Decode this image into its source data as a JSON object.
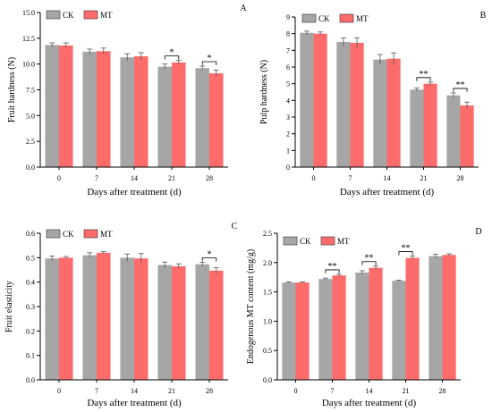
{
  "colors": {
    "CK": "#a6a6a6",
    "MT": "#fe6b6b",
    "axis": "#000000"
  },
  "chart_data": [
    {
      "panel": "A",
      "type": "bar",
      "xlabel": "Days after treatment (d)",
      "ylabel": "Fruit hardness (N)",
      "categories": [
        "0",
        "7",
        "14",
        "21",
        "28"
      ],
      "ylim": [
        0,
        15
      ],
      "yticks": [
        0.0,
        2.5,
        5.0,
        7.5,
        10.0,
        12.5,
        15.0
      ],
      "ytick_labels": [
        "0.0",
        "2.5",
        "5.0",
        "7.5",
        "10.0",
        "12.5",
        "15.0"
      ],
      "series": [
        {
          "name": "CK",
          "values": [
            11.85,
            11.2,
            10.65,
            9.75,
            9.6
          ],
          "errors": [
            0.2,
            0.25,
            0.35,
            0.25,
            0.2
          ]
        },
        {
          "name": "MT",
          "values": [
            11.8,
            11.25,
            10.75,
            10.15,
            9.1
          ],
          "errors": [
            0.25,
            0.3,
            0.35,
            0.2,
            0.3
          ]
        }
      ],
      "significance": [
        {
          "category": "21",
          "label": "*"
        },
        {
          "category": "28",
          "label": "*"
        }
      ]
    },
    {
      "panel": "B",
      "type": "bar",
      "xlabel": "Days after treatment (d)",
      "ylabel": "Pulp hardness (N)",
      "categories": [
        "0",
        "7",
        "14",
        "21",
        "28"
      ],
      "ylim": [
        0,
        9
      ],
      "yticks": [
        0,
        1,
        2,
        3,
        4,
        5,
        6,
        7,
        8,
        9
      ],
      "ytick_labels": [
        "0",
        "1",
        "2",
        "3",
        "4",
        "5",
        "6",
        "7",
        "8",
        "9"
      ],
      "series": [
        {
          "name": "CK",
          "values": [
            8.05,
            7.5,
            6.45,
            4.65,
            4.3
          ],
          "errors": [
            0.1,
            0.25,
            0.3,
            0.1,
            0.15
          ]
        },
        {
          "name": "MT",
          "values": [
            8.0,
            7.45,
            6.5,
            5.0,
            3.7
          ],
          "errors": [
            0.1,
            0.3,
            0.35,
            0.1,
            0.2
          ]
        }
      ],
      "significance": [
        {
          "category": "21",
          "label": "**"
        },
        {
          "category": "28",
          "label": "**"
        }
      ]
    },
    {
      "panel": "C",
      "type": "bar",
      "xlabel": "Days after treatment (d)",
      "ylabel": "Fruit elasticity",
      "categories": [
        "0",
        "7",
        "14",
        "21",
        "28"
      ],
      "ylim": [
        0,
        0.6
      ],
      "yticks": [
        0.0,
        0.1,
        0.2,
        0.3,
        0.4,
        0.5,
        0.6
      ],
      "ytick_labels": [
        "0.0",
        "0.1",
        "0.2",
        "0.3",
        "0.4",
        "0.5",
        "0.6"
      ],
      "series": [
        {
          "name": "CK",
          "values": [
            0.497,
            0.51,
            0.5,
            0.47,
            0.473
          ],
          "errors": [
            0.01,
            0.01,
            0.015,
            0.012,
            0.008
          ]
        },
        {
          "name": "MT",
          "values": [
            0.5,
            0.52,
            0.497,
            0.465,
            0.447
          ],
          "errors": [
            0.005,
            0.005,
            0.02,
            0.01,
            0.012
          ]
        }
      ],
      "significance": [
        {
          "category": "28",
          "label": "*"
        }
      ]
    },
    {
      "panel": "D",
      "type": "bar",
      "xlabel": "Days after treatment (d)",
      "ylabel": "Endogenous MT content (mg/g)",
      "categories": [
        "0",
        "7",
        "14",
        "21",
        "28"
      ],
      "ylim": [
        0,
        2.5
      ],
      "yticks": [
        0.0,
        0.5,
        1.0,
        1.5,
        2.0,
        2.5
      ],
      "ytick_labels": [
        "0.0",
        "0.5",
        "1.0",
        "1.5",
        "2.0",
        "2.5"
      ],
      "series": [
        {
          "name": "CK",
          "values": [
            1.66,
            1.72,
            1.83,
            1.69,
            2.11
          ],
          "errors": [
            0.01,
            0.015,
            0.03,
            0.01,
            0.03
          ]
        },
        {
          "name": "MT",
          "values": [
            1.66,
            1.78,
            1.91,
            2.08,
            2.13
          ],
          "errors": [
            0.01,
            0.02,
            0.03,
            0.03,
            0.02
          ]
        }
      ],
      "significance": [
        {
          "category": "7",
          "label": "**"
        },
        {
          "category": "14",
          "label": "**"
        },
        {
          "category": "21",
          "label": "**"
        }
      ]
    }
  ]
}
